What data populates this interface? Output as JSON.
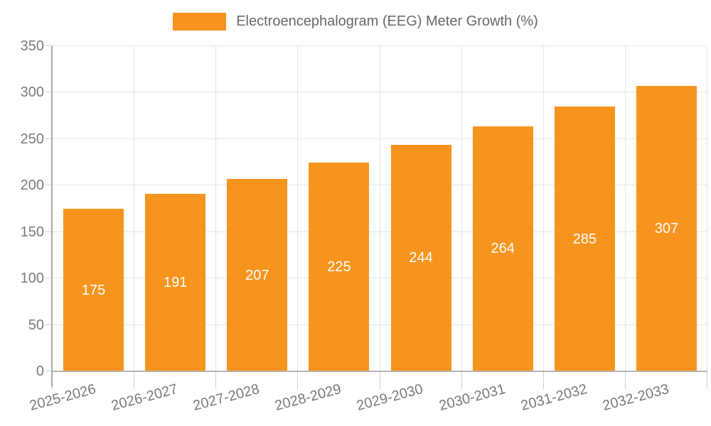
{
  "legend": {
    "label": "Electroencephalogram (EEG) Meter Growth (%)",
    "swatch_color": "#F7941E"
  },
  "chart_data": {
    "type": "bar",
    "title": "Electroencephalogram (EEG) Meter Growth (%)",
    "categories": [
      "2025-2026",
      "2026-2027",
      "2027-2028",
      "2028-2029",
      "2029-2030",
      "2030-2031",
      "2031-2032",
      "2032-2033"
    ],
    "values": [
      175,
      191,
      207,
      225,
      244,
      264,
      285,
      307
    ],
    "value_labels": [
      "175",
      "191",
      "207",
      "225",
      "244",
      "264",
      "285",
      "307"
    ],
    "yticks": [
      0,
      50,
      100,
      150,
      200,
      250,
      300,
      350
    ],
    "ytick_labels": [
      "0",
      "50",
      "100",
      "150",
      "200",
      "250",
      "300",
      "350"
    ],
    "ylim": [
      0,
      350
    ],
    "xlabel": "",
    "ylabel": "",
    "grid": true,
    "legend_position": "top",
    "bar_color": "#F7941E",
    "data_label_color": "#ffffff"
  },
  "colors": {
    "bar": "#F7941E",
    "grid": "#E5E5E5",
    "axis": "#A8A8A8",
    "tick": "#CFCFCF",
    "axis_text": "#7a7a7a",
    "title_text": "#686868",
    "background": "#ffffff"
  }
}
